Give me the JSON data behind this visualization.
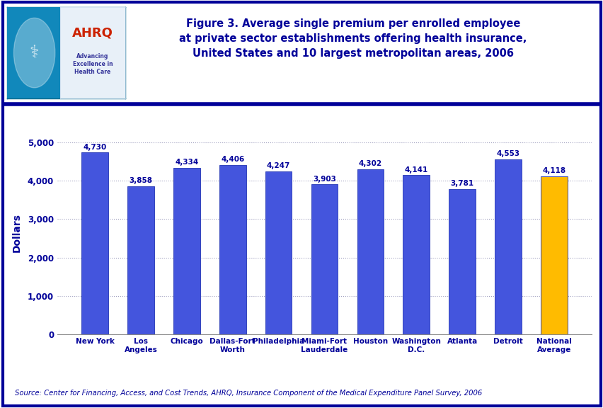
{
  "categories": [
    "New York",
    "Los\nAngeles",
    "Chicago",
    "Dallas-Fort\nWorth",
    "Philadelphia",
    "Miami-Fort\nLauderdale",
    "Houston",
    "Washington\nD.C.",
    "Atlanta",
    "Detroit",
    "National\nAverage"
  ],
  "values": [
    4730,
    3858,
    4334,
    4406,
    4247,
    3903,
    4302,
    4141,
    3781,
    4553,
    4118
  ],
  "bar_colors": [
    "#4455dd",
    "#4455dd",
    "#4455dd",
    "#4455dd",
    "#4455dd",
    "#4455dd",
    "#4455dd",
    "#4455dd",
    "#4455dd",
    "#4455dd",
    "#FFBB00"
  ],
  "bar_edge_color": "#3344bb",
  "title_line1": "Figure 3. Average single premium per enrolled employee",
  "title_line2": "at private sector establishments offering health insurance,",
  "title_line3": "United States and 10 largest metropolitan areas, 2006",
  "ylabel": "Dollars",
  "ylim": [
    0,
    5300
  ],
  "yticks": [
    0,
    1000,
    2000,
    3000,
    4000,
    5000
  ],
  "ytick_labels": [
    "0",
    "1,000",
    "2,000",
    "3,000",
    "4,000",
    "5,000"
  ],
  "source_text": "Source: Center for Financing, Access, and Cost Trends, AHRQ, Insurance Component of the Medical Expenditure Panel Survey, 2006",
  "background_color": "#ffffff",
  "border_color": "#000099",
  "title_color": "#000099",
  "tick_label_color": "#000099",
  "source_color": "#000099",
  "value_label_color": "#000099",
  "ylabel_color": "#000099",
  "separator_color": "#000099",
  "grid_color": "#9999bb",
  "logo_bg": "#1188bb",
  "logo_text_ahrq": "#cc3300",
  "logo_text_sub": "#ffffff"
}
